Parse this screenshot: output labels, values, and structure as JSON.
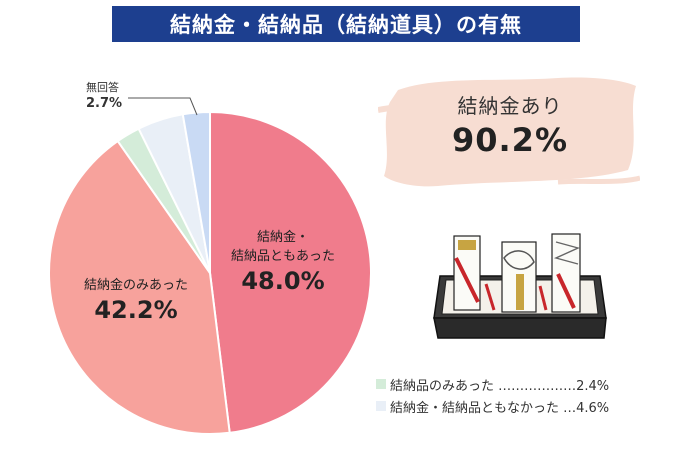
{
  "title": "結納金・結納品（結納道具）の有無",
  "callout": {
    "label": "結納金あり",
    "value": "90.2%"
  },
  "chart_data": {
    "type": "pie",
    "title": "結納金・結納品（結納道具）の有無",
    "start": "12 o'clock, clockwise",
    "slices": [
      {
        "label": "結納金・結納品ともあった",
        "value": 48.0,
        "display_name": "結納金・\n結納品ともあった",
        "display_pct": "48.0%",
        "color": "#f07c8c"
      },
      {
        "label": "結納金のみあった",
        "value": 42.2,
        "display_name": "結納金のみあった",
        "display_pct": "42.2%",
        "color": "#f7a29c"
      },
      {
        "label": "結納品のみあった",
        "value": 2.4,
        "display_pct": "2.4%",
        "color": "#d4ecd9"
      },
      {
        "label": "結納金・結納品ともなかった",
        "value": 4.6,
        "display_pct": "4.6%",
        "color": "#e9eff7"
      },
      {
        "label": "無回答",
        "value": 2.7,
        "display_pct": "2.7%",
        "color": "#c9daf4"
      }
    ],
    "legend": [
      {
        "text": "結納品のみあった ………………2.4%",
        "color": "#d4ecd9"
      },
      {
        "text": "結納金・結納品ともなかった …4.6%",
        "color": "#e9eff7"
      }
    ]
  }
}
